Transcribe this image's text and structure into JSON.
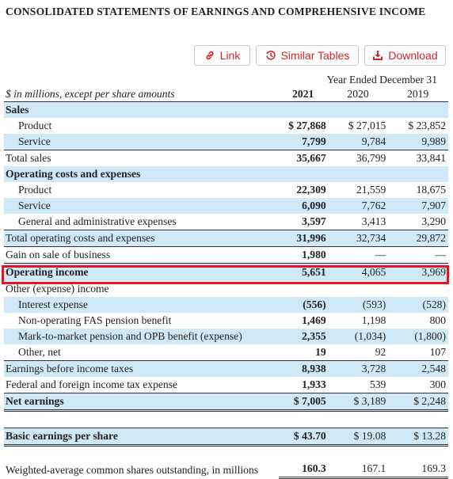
{
  "title": "CONSOLIDATED STATEMENTS OF EARNINGS AND COMPREHENSIVE INCOME",
  "buttons": {
    "link": "Link",
    "similar_tables": "Similar Tables",
    "download": "Download"
  },
  "header": {
    "period": "Year Ended December 31",
    "units": "$ in millions, except per share amounts",
    "years": [
      "2021",
      "2020",
      "2019"
    ]
  },
  "rows": [
    {
      "label": "Sales",
      "values": [
        "",
        "",
        ""
      ]
    },
    {
      "label": "Product",
      "values": [
        "$ 27,868",
        "$ 27,015",
        "$ 23,852"
      ]
    },
    {
      "label": "Service",
      "values": [
        "7,799",
        "9,784",
        "9,989"
      ]
    },
    {
      "label": "Total sales",
      "values": [
        "35,667",
        "36,799",
        "33,841"
      ]
    },
    {
      "label": "Operating costs and expenses",
      "values": [
        "",
        "",
        ""
      ]
    },
    {
      "label": "Product",
      "values": [
        "22,309",
        "21,559",
        "18,675"
      ]
    },
    {
      "label": "Service",
      "values": [
        "6,090",
        "7,762",
        "7,907"
      ]
    },
    {
      "label": "General and administrative expenses",
      "values": [
        "3,597",
        "3,413",
        "3,290"
      ]
    },
    {
      "label": "Total operating costs and expenses",
      "values": [
        "31,996",
        "32,734",
        "29,872"
      ]
    },
    {
      "label": "Gain on sale of business",
      "values": [
        "1,980",
        "—",
        "—"
      ]
    },
    {
      "label": "Operating income",
      "values": [
        "5,651",
        "4,065",
        "3,969"
      ]
    },
    {
      "label": "Other (expense) income",
      "values": [
        "",
        "",
        ""
      ]
    },
    {
      "label": "Interest expense",
      "values": [
        "(556)",
        "(593)",
        "(528)"
      ]
    },
    {
      "label": "Non-operating FAS pension benefit",
      "values": [
        "1,469",
        "1,198",
        "800"
      ]
    },
    {
      "label": "Mark-to-market pension and OPB benefit (expense)",
      "values": [
        "2,355",
        "(1,034)",
        "(1,800)"
      ]
    },
    {
      "label": "Other, net",
      "values": [
        "19",
        "92",
        "107"
      ]
    },
    {
      "label": "Earnings before income taxes",
      "values": [
        "8,938",
        "3,728",
        "2,548"
      ]
    },
    {
      "label": "Federal and foreign income tax expense",
      "values": [
        "1,933",
        "539",
        "300"
      ]
    },
    {
      "label": "Net earnings",
      "values": [
        "$ 7,005",
        "$ 3,189",
        "$ 2,248"
      ]
    },
    {
      "label": "Basic earnings per share",
      "values": [
        "$ 43.70",
        "$ 19.08",
        "$ 13.28"
      ]
    },
    {
      "label": "Weighted-average common shares outstanding, in millions",
      "values": [
        "160.3",
        "167.1",
        "169.3"
      ]
    }
  ]
}
